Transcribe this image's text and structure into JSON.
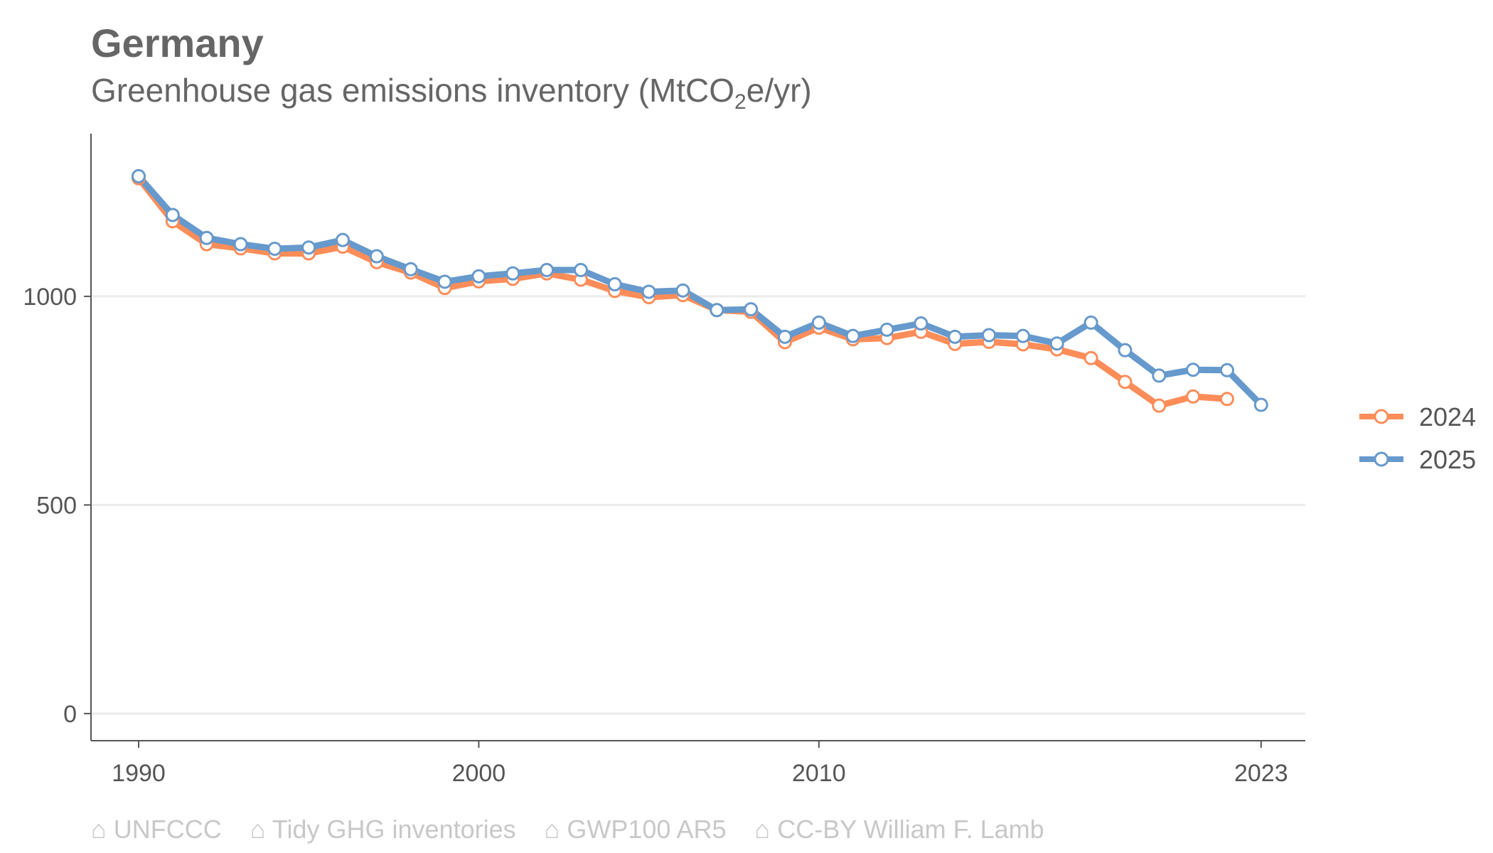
{
  "header": {
    "title": "Germany",
    "subtitle_main": "Greenhouse gas emissions inventory (MtCO",
    "subtitle_sub": "2",
    "subtitle_tail": "e/yr)"
  },
  "caption": {
    "items": [
      "⌂ UNFCCC",
      "⌂ Tidy GHG inventories",
      "⌂ GWP100 AR5",
      "⌂ CC-BY William F. Lamb"
    ]
  },
  "chart_data": {
    "type": "line",
    "title": "Germany",
    "subtitle": "Greenhouse gas emissions inventory (MtCO2e/yr)",
    "xlabel": "",
    "ylabel": "",
    "xlim": [
      1988.6,
      2024.3
    ],
    "ylim": [
      -65,
      1390
    ],
    "x_ticks": [
      1990,
      2000,
      2010,
      2023
    ],
    "y_ticks": [
      0,
      500,
      1000
    ],
    "grid": "horizontal",
    "legend_position": "right",
    "series": [
      {
        "name": "2024",
        "color": "#fc8d59",
        "x": [
          1990,
          1991,
          1992,
          1993,
          1994,
          1995,
          1996,
          1997,
          1998,
          1999,
          2000,
          2001,
          2002,
          2003,
          2004,
          2005,
          2006,
          2007,
          2008,
          2009,
          2010,
          2011,
          2012,
          2013,
          2014,
          2015,
          2016,
          2017,
          2018,
          2019,
          2020,
          2021,
          2022
        ],
        "values": [
          1283,
          1180,
          1125,
          1115,
          1103,
          1103,
          1119,
          1082,
          1057,
          1020,
          1036,
          1042,
          1055,
          1040,
          1013,
          998,
          1003,
          967,
          963,
          890,
          925,
          897,
          900,
          915,
          886,
          891,
          885,
          873,
          852,
          795,
          738,
          760,
          754
        ]
      },
      {
        "name": "2025",
        "color": "#6699cc",
        "x": [
          1990,
          1991,
          1992,
          1993,
          1994,
          1995,
          1996,
          1997,
          1998,
          1999,
          2000,
          2001,
          2002,
          2003,
          2004,
          2005,
          2006,
          2007,
          2008,
          2009,
          2010,
          2011,
          2012,
          2013,
          2014,
          2015,
          2016,
          2017,
          2018,
          2019,
          2020,
          2021,
          2022,
          2023
        ],
        "values": [
          1288,
          1195,
          1140,
          1125,
          1114,
          1117,
          1135,
          1096,
          1065,
          1035,
          1048,
          1055,
          1063,
          1063,
          1029,
          1011,
          1014,
          967,
          969,
          903,
          937,
          905,
          920,
          935,
          903,
          907,
          905,
          887,
          937,
          871,
          810,
          824,
          823,
          740
        ]
      }
    ]
  }
}
